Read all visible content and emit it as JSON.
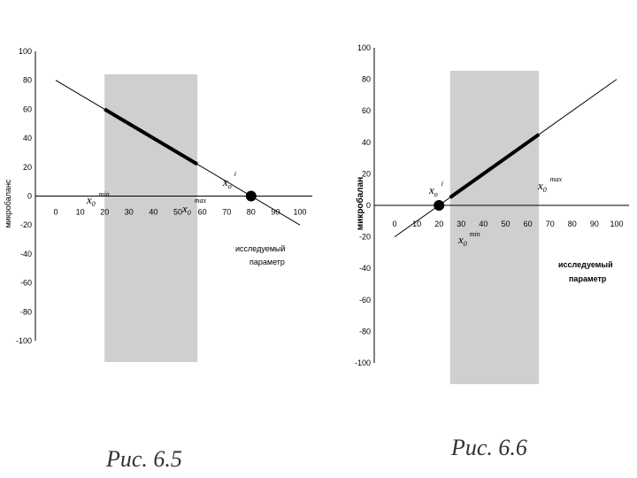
{
  "charts": [
    {
      "caption": "Рис. 6.5",
      "ylabel": "микробаланс",
      "xlabel_lines": [
        "исследуемый",
        "параметр"
      ],
      "marker_labels": {
        "xmin_base": "x",
        "xmin_sub": "0",
        "xmin_sup": "min",
        "xmax_base": "x",
        "xmax_sub": "0",
        "xmax_sup": "max",
        "xi_base": "x",
        "xi_sub": "o",
        "xi_sup": "i"
      }
    },
    {
      "caption": "Рис. 6.6",
      "ylabel": "микробалан",
      "xlabel_lines": [
        "исследуемый",
        "параметр"
      ],
      "marker_labels": {
        "xmin_base": "x",
        "xmin_sub": "0",
        "xmin_sup": "min",
        "xmax_base": "x",
        "xmax_sub": "0",
        "xmax_sup": "max",
        "xi_base": "x",
        "xi_sub": "o",
        "xi_sup": "i"
      }
    }
  ],
  "chart_data": [
    {
      "type": "line",
      "xlim": [
        0,
        100
      ],
      "ylim": [
        -100,
        100
      ],
      "x_ticks": [
        0,
        10,
        20,
        30,
        40,
        50,
        60,
        70,
        80,
        90,
        100
      ],
      "y_ticks": [
        100,
        80,
        60,
        40,
        20,
        0,
        -20,
        -40,
        -60,
        -80,
        -100
      ],
      "line": {
        "x": [
          0,
          100
        ],
        "y": [
          80,
          -20
        ]
      },
      "highlight_segment": {
        "x": [
          20,
          58
        ],
        "y": [
          60,
          22
        ]
      },
      "band_x": [
        20,
        58
      ],
      "root_point": {
        "x": 80,
        "y": 0
      },
      "grid": false,
      "colors": {
        "band": "#cfcfcf",
        "line": "#000000"
      }
    },
    {
      "type": "line",
      "xlim": [
        0,
        100
      ],
      "ylim": [
        -100,
        100
      ],
      "x_ticks": [
        0,
        10,
        20,
        30,
        40,
        50,
        60,
        70,
        80,
        90,
        100
      ],
      "y_ticks": [
        100,
        80,
        60,
        40,
        20,
        0,
        -20,
        -40,
        -60,
        -80,
        -100
      ],
      "line": {
        "x": [
          0,
          100
        ],
        "y": [
          -20,
          80
        ]
      },
      "highlight_segment": {
        "x": [
          25,
          65
        ],
        "y": [
          5,
          45
        ]
      },
      "band_x": [
        25,
        65
      ],
      "root_point": {
        "x": 20,
        "y": 0
      },
      "grid": false,
      "colors": {
        "band": "#cfcfcf",
        "line": "#000000"
      }
    }
  ]
}
